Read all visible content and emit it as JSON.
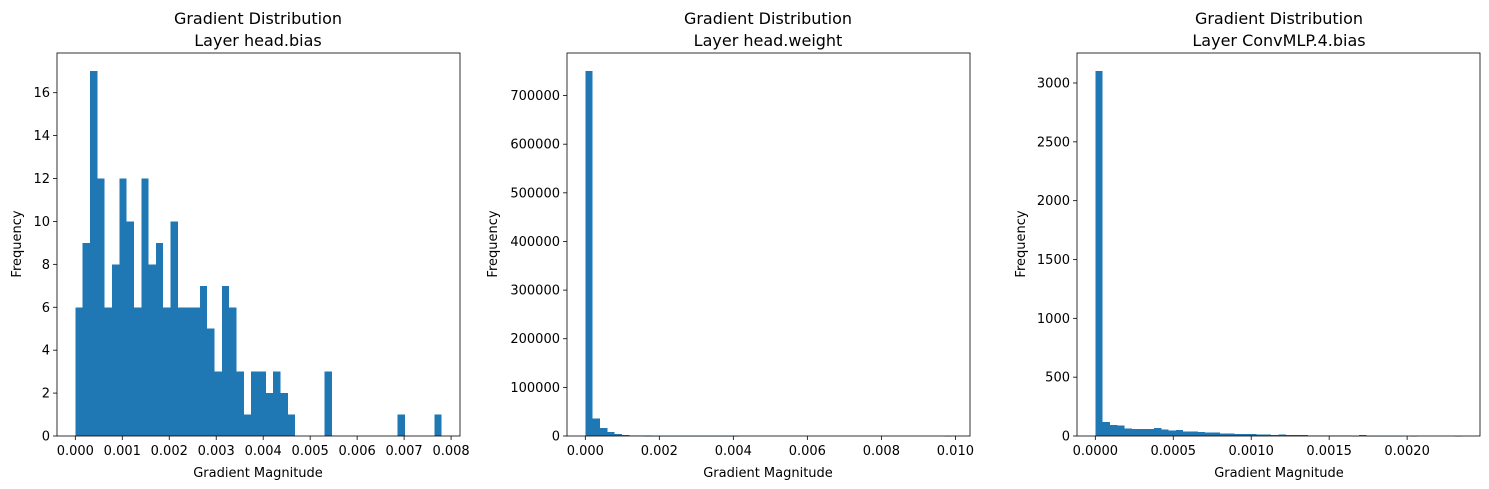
{
  "chart_data": [
    {
      "type": "bar",
      "title": [
        "Gradient Distribution",
        "Layer head.bias"
      ],
      "xlabel": "Gradient Magnitude",
      "ylabel": "Frequency",
      "xlim": [
        -0.00039,
        0.00819
      ],
      "ylim": [
        0,
        17.85
      ],
      "xticks": [
        0.0,
        0.001,
        0.002,
        0.003,
        0.004,
        0.005,
        0.006,
        0.007,
        0.008
      ],
      "xticklabels": [
        "0.000",
        "0.001",
        "0.002",
        "0.003",
        "0.004",
        "0.005",
        "0.006",
        "0.007",
        "0.008"
      ],
      "yticks": [
        0,
        2,
        4,
        6,
        8,
        10,
        12,
        14,
        16
      ],
      "yticklabels": [
        "0",
        "2",
        "4",
        "6",
        "8",
        "10",
        "12",
        "14",
        "16"
      ],
      "bin_start": 0.0,
      "bin_width": 0.000156,
      "values": [
        6,
        9,
        17,
        12,
        6,
        8,
        12,
        10,
        6,
        12,
        8,
        9,
        6,
        10,
        6,
        6,
        6,
        7,
        5,
        3,
        7,
        6,
        3,
        1,
        3,
        3,
        2,
        3,
        2,
        1,
        0,
        0,
        0,
        0,
        3,
        0,
        0,
        0,
        0,
        0,
        0,
        0,
        0,
        0,
        1,
        0,
        0,
        0,
        0,
        1
      ],
      "color": "#1f77b4"
    },
    {
      "type": "bar",
      "title": [
        "Gradient Distribution",
        "Layer head.weight"
      ],
      "xlabel": "Gradient Magnitude",
      "ylabel": "Frequency",
      "xlim": [
        -0.000495,
        0.010395
      ],
      "ylim": [
        0,
        787500
      ],
      "xticks": [
        0.0,
        0.002,
        0.004,
        0.006,
        0.008,
        0.01
      ],
      "xticklabels": [
        "0.000",
        "0.002",
        "0.004",
        "0.006",
        "0.008",
        "0.010"
      ],
      "yticks": [
        0,
        100000,
        200000,
        300000,
        400000,
        500000,
        600000,
        700000
      ],
      "yticklabels": [
        "0",
        "100000",
        "200000",
        "300000",
        "400000",
        "500000",
        "600000",
        "700000"
      ],
      "bin_start": 0.0,
      "bin_width": 0.000198,
      "values": [
        750000,
        36000,
        16000,
        8000,
        4000,
        2500,
        1500,
        1000,
        600,
        300,
        150,
        80,
        40,
        20,
        10,
        5,
        3,
        2,
        1,
        1,
        1,
        0,
        0,
        0,
        0,
        0,
        0,
        0,
        0,
        0,
        0,
        0,
        0,
        0,
        0,
        0,
        0,
        0,
        0,
        0,
        0,
        0,
        0,
        0,
        0,
        0,
        0,
        0,
        0,
        1
      ],
      "color": "#1f77b4"
    },
    {
      "type": "bar",
      "title": [
        "Gradient Distribution",
        "Layer ConvMLP.4.bias"
      ],
      "xlabel": "Gradient Magnitude",
      "ylabel": "Frequency",
      "xlim": [
        -0.0001175,
        0.0024675
      ],
      "ylim": [
        0,
        3255
      ],
      "xticks": [
        0.0,
        0.0005,
        0.001,
        0.0015,
        0.002
      ],
      "xticklabels": [
        "0.0000",
        "0.0005",
        "0.0010",
        "0.0015",
        "0.0020"
      ],
      "yticks": [
        0,
        500,
        1000,
        1500,
        2000,
        2500,
        3000
      ],
      "yticklabels": [
        "0",
        "500",
        "1000",
        "1500",
        "2000",
        "2500",
        "3000"
      ],
      "bin_start": 0.0,
      "bin_width": 4.7e-05,
      "values": [
        3100,
        120,
        95,
        90,
        65,
        60,
        60,
        58,
        70,
        55,
        45,
        50,
        40,
        38,
        35,
        30,
        28,
        22,
        20,
        18,
        16,
        15,
        12,
        14,
        10,
        12,
        8,
        9,
        7,
        6,
        5,
        6,
        4,
        5,
        3,
        2,
        10,
        1,
        1,
        2,
        1,
        1,
        0,
        1,
        0,
        0,
        0,
        0,
        0,
        1
      ],
      "color": "#1f77b4"
    }
  ]
}
